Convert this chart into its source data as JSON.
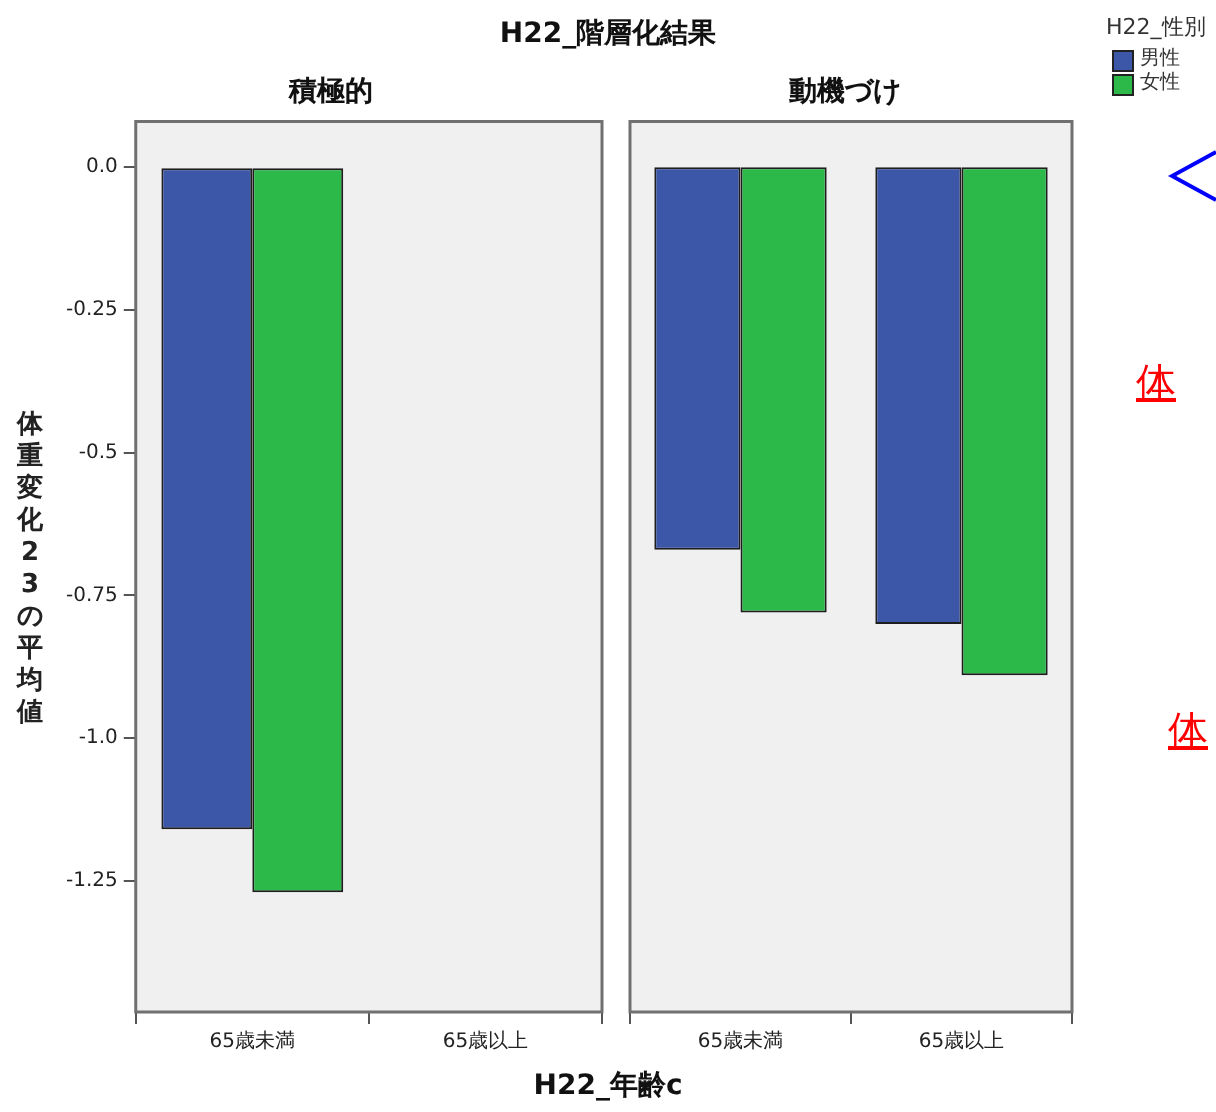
{
  "chart_data": [
    {
      "type": "bar",
      "title": "積極的",
      "xlabel": "H22_年齢c",
      "ylabel": "体重変化23の平均値",
      "annotations": [
        "H22_階層化結果"
      ],
      "categories": [
        "65歳未満",
        "65歳以上"
      ],
      "series": [
        {
          "color": "#3c56a8",
          "values": [
            -1.16,
            null
          ]
        },
        {
          "color": "#2db84a",
          "values": [
            -1.27,
            null
          ]
        }
      ],
      "ylim": [
        -1.48,
        0.08
      ],
      "yticks": [
        {
          "value": 0,
          "label": "0.0"
        },
        -0.25,
        {
          "value": -0.5,
          "label": "-0.5"
        },
        -0.75,
        {
          "value": -1,
          "label": "-1.0"
        },
        -1.25
      ],
      "grid": false
    },
    {
      "type": "bar",
      "title": "動機づけ",
      "legend_title": "H22_性別",
      "annotations": [
        "体",
        "体"
      ],
      "categories": [
        "65歳未満",
        "65歳以上"
      ],
      "series": [
        {
          "name": "男性",
          "color": "#3c56a8",
          "values": [
            -0.67,
            -0.8
          ]
        },
        {
          "name": "女性",
          "color": "#2db84a",
          "values": [
            -0.78,
            -0.89
          ]
        }
      ],
      "ylim": [
        -1.48,
        0.08
      ],
      "grid": false,
      "legend": "top right",
      "tick_labels": "x"
    }
  ]
}
